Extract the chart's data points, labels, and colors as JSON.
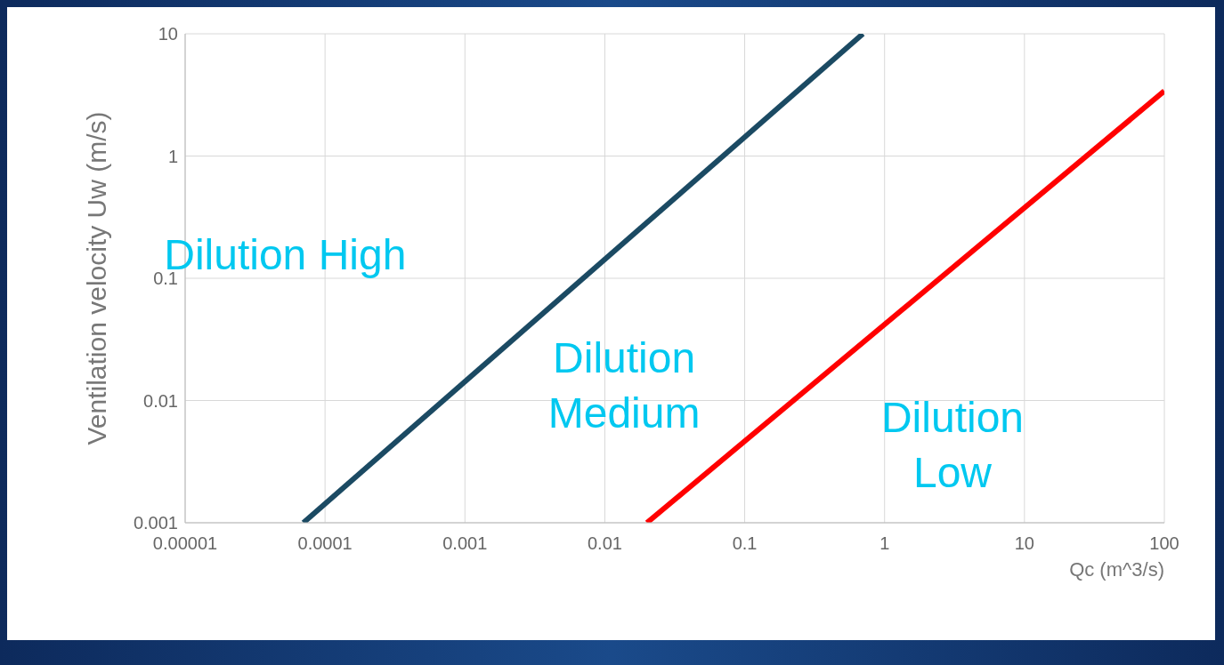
{
  "chart_data": {
    "type": "line",
    "xlabel": "Qc (m^3/s)",
    "ylabel": "Ventilation velocity Uw (m/s)",
    "log": "xy",
    "xlim": [
      1e-05,
      100
    ],
    "ylim": [
      0.001,
      10
    ],
    "xticks": [
      {
        "value": 1e-05,
        "label": "0.00001"
      },
      0.0001,
      0.001,
      0.01,
      0.1,
      1,
      10,
      100
    ],
    "yticks": [
      0.001,
      0.01,
      0.1,
      1,
      10
    ],
    "grid": true,
    "marker": "none",
    "line_style": "solid",
    "series": [
      {
        "color": "#1b4a63",
        "x": [
          7e-05,
          0.7
        ],
        "values": [
          0.001,
          10
        ]
      },
      {
        "color": "#ff0000",
        "x": [
          0.02,
          100
        ],
        "values": [
          0.001,
          3.4
        ]
      }
    ],
    "annotations": [
      "Dilution High",
      "Dilution Medium",
      "Dilution Low"
    ]
  }
}
